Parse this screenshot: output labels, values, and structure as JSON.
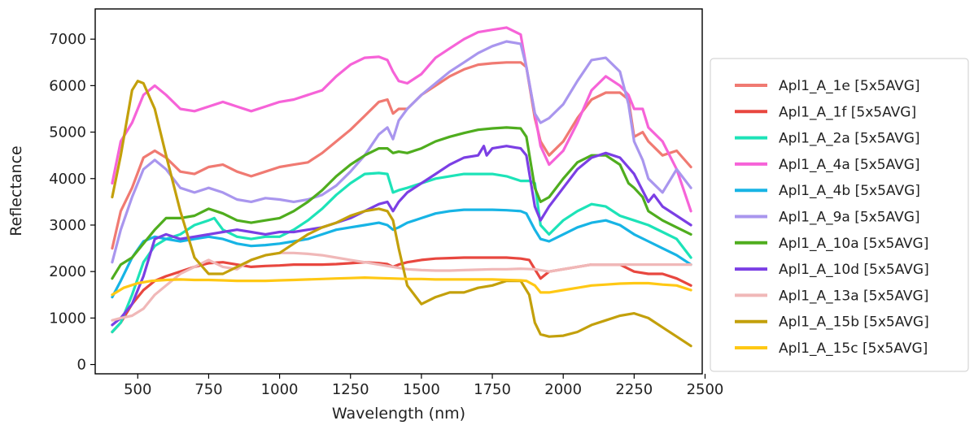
{
  "chart_data": {
    "type": "line",
    "title": "",
    "xlabel": "Wavelength (nm)",
    "ylabel": "Reflectance",
    "xlim": [
      350,
      2490
    ],
    "ylim": [
      -200,
      7650
    ],
    "xticks": [
      500,
      750,
      1000,
      1250,
      1500,
      1750,
      2000,
      2250,
      2500
    ],
    "yticks": [
      0,
      1000,
      2000,
      3000,
      4000,
      5000,
      6000,
      7000
    ],
    "grid": false,
    "legend_position": "outside-right",
    "series": [
      {
        "name": "Apl1_A_1e [5x5AVG]",
        "color": "#F07A72",
        "x": [
          410,
          440,
          480,
          520,
          560,
          600,
          650,
          700,
          750,
          800,
          850,
          900,
          950,
          1000,
          1050,
          1100,
          1150,
          1200,
          1250,
          1300,
          1350,
          1380,
          1400,
          1420,
          1450,
          1500,
          1550,
          1600,
          1650,
          1700,
          1750,
          1800,
          1850,
          1870,
          1900,
          1920,
          1950,
          2000,
          2050,
          2100,
          2150,
          2200,
          2230,
          2250,
          2280,
          2300,
          2350,
          2400,
          2450
        ],
        "y": [
          2500,
          3300,
          3800,
          4450,
          4600,
          4450,
          4150,
          4100,
          4250,
          4300,
          4150,
          4050,
          4150,
          4250,
          4300,
          4350,
          4550,
          4800,
          5050,
          5350,
          5650,
          5700,
          5400,
          5500,
          5500,
          5800,
          6000,
          6200,
          6350,
          6450,
          6480,
          6500,
          6500,
          6400,
          5300,
          4800,
          4500,
          4800,
          5300,
          5700,
          5850,
          5850,
          5700,
          4900,
          5000,
          4800,
          4500,
          4600,
          4250
        ]
      },
      {
        "name": "Apl1_A_1f [5x5AVG]",
        "color": "#E8473F",
        "x": [
          410,
          440,
          480,
          520,
          560,
          600,
          650,
          700,
          750,
          800,
          850,
          900,
          950,
          1000,
          1050,
          1100,
          1150,
          1200,
          1250,
          1300,
          1350,
          1380,
          1400,
          1420,
          1450,
          1500,
          1550,
          1600,
          1650,
          1700,
          1750,
          1800,
          1850,
          1880,
          1900,
          1920,
          1950,
          2000,
          2050,
          2100,
          2150,
          2200,
          2250,
          2300,
          2350,
          2400,
          2450
        ],
        "y": [
          700,
          900,
          1300,
          1600,
          1800,
          1900,
          2000,
          2100,
          2180,
          2200,
          2150,
          2100,
          2120,
          2130,
          2150,
          2150,
          2150,
          2160,
          2180,
          2200,
          2180,
          2160,
          2100,
          2150,
          2200,
          2250,
          2280,
          2290,
          2300,
          2300,
          2300,
          2300,
          2280,
          2250,
          2050,
          1850,
          2000,
          2050,
          2100,
          2150,
          2150,
          2150,
          2000,
          1950,
          1950,
          1850,
          1700
        ]
      },
      {
        "name": "Apl1_A_2a [5x5AVG]",
        "color": "#1DE3B8",
        "x": [
          410,
          440,
          480,
          520,
          560,
          600,
          650,
          700,
          750,
          770,
          800,
          850,
          900,
          950,
          1000,
          1050,
          1100,
          1150,
          1200,
          1250,
          1300,
          1350,
          1380,
          1400,
          1420,
          1450,
          1500,
          1550,
          1600,
          1650,
          1700,
          1750,
          1800,
          1850,
          1880,
          1900,
          1920,
          1950,
          2000,
          2050,
          2100,
          2150,
          2200,
          2250,
          2300,
          2350,
          2400,
          2450
        ],
        "y": [
          700,
          900,
          1500,
          2200,
          2550,
          2700,
          2800,
          3000,
          3100,
          3150,
          2900,
          2750,
          2700,
          2750,
          2750,
          2900,
          3100,
          3350,
          3650,
          3900,
          4100,
          4120,
          4100,
          3700,
          3750,
          3800,
          3900,
          4000,
          4050,
          4100,
          4100,
          4100,
          4050,
          3950,
          3950,
          3900,
          3000,
          2800,
          3100,
          3300,
          3450,
          3400,
          3200,
          3100,
          3000,
          2850,
          2700,
          2300
        ]
      },
      {
        "name": "Apl1_A_4a [5x5AVG]",
        "color": "#F663D8",
        "x": [
          410,
          440,
          480,
          520,
          560,
          600,
          650,
          700,
          750,
          800,
          850,
          900,
          950,
          1000,
          1050,
          1100,
          1150,
          1200,
          1250,
          1300,
          1350,
          1380,
          1400,
          1420,
          1450,
          1500,
          1550,
          1600,
          1650,
          1700,
          1750,
          1800,
          1850,
          1870,
          1900,
          1920,
          1950,
          2000,
          2050,
          2100,
          2150,
          2200,
          2230,
          2250,
          2280,
          2300,
          2350,
          2400,
          2450
        ],
        "y": [
          3900,
          4800,
          5200,
          5800,
          6000,
          5800,
          5500,
          5450,
          5550,
          5650,
          5550,
          5450,
          5550,
          5650,
          5700,
          5800,
          5900,
          6200,
          6450,
          6600,
          6620,
          6550,
          6300,
          6100,
          6050,
          6250,
          6600,
          6800,
          7000,
          7150,
          7200,
          7250,
          7100,
          6400,
          5400,
          4700,
          4300,
          4600,
          5200,
          5900,
          6200,
          6000,
          5800,
          5500,
          5500,
          5100,
          4800,
          4200,
          3300
        ]
      },
      {
        "name": "Apl1_A_4b [5x5AVG]",
        "color": "#17B4E5",
        "x": [
          410,
          440,
          480,
          520,
          560,
          600,
          650,
          700,
          750,
          800,
          850,
          900,
          950,
          1000,
          1050,
          1100,
          1150,
          1200,
          1250,
          1300,
          1350,
          1380,
          1400,
          1420,
          1450,
          1500,
          1550,
          1600,
          1650,
          1700,
          1750,
          1800,
          1850,
          1870,
          1900,
          1920,
          1950,
          2000,
          2050,
          2100,
          2150,
          2200,
          2250,
          2300,
          2350,
          2400,
          2450
        ],
        "y": [
          1450,
          1800,
          2300,
          2650,
          2750,
          2700,
          2650,
          2700,
          2750,
          2700,
          2600,
          2550,
          2570,
          2600,
          2650,
          2700,
          2800,
          2900,
          2950,
          3000,
          3050,
          3000,
          2900,
          2950,
          3050,
          3150,
          3250,
          3300,
          3330,
          3330,
          3330,
          3320,
          3300,
          3250,
          2900,
          2700,
          2650,
          2800,
          2950,
          3050,
          3100,
          3000,
          2800,
          2650,
          2500,
          2350,
          2150
        ]
      },
      {
        "name": "Apl1_A_9a [5x5AVG]",
        "color": "#A996EE",
        "x": [
          410,
          440,
          480,
          520,
          560,
          600,
          650,
          700,
          750,
          800,
          850,
          900,
          950,
          1000,
          1050,
          1100,
          1150,
          1200,
          1250,
          1300,
          1350,
          1380,
          1400,
          1420,
          1450,
          1500,
          1550,
          1600,
          1650,
          1700,
          1750,
          1800,
          1850,
          1870,
          1900,
          1920,
          1950,
          2000,
          2050,
          2100,
          2150,
          2200,
          2230,
          2250,
          2280,
          2300,
          2350,
          2400,
          2450
        ],
        "y": [
          2200,
          2900,
          3600,
          4200,
          4400,
          4200,
          3800,
          3700,
          3800,
          3700,
          3550,
          3500,
          3580,
          3550,
          3500,
          3550,
          3650,
          3850,
          4150,
          4500,
          4950,
          5100,
          4850,
          5250,
          5500,
          5800,
          6050,
          6300,
          6500,
          6700,
          6850,
          6950,
          6900,
          6400,
          5400,
          5200,
          5300,
          5600,
          6100,
          6550,
          6600,
          6300,
          5600,
          4800,
          4400,
          4000,
          3700,
          4200,
          3800
        ]
      },
      {
        "name": "Apl1_A_10a [5x5AVG]",
        "color": "#4FAD1E",
        "x": [
          410,
          440,
          480,
          520,
          560,
          600,
          650,
          700,
          750,
          800,
          850,
          900,
          950,
          1000,
          1050,
          1100,
          1150,
          1200,
          1250,
          1300,
          1350,
          1380,
          1400,
          1420,
          1450,
          1500,
          1550,
          1600,
          1650,
          1700,
          1750,
          1800,
          1850,
          1870,
          1900,
          1920,
          1950,
          2000,
          2050,
          2100,
          2150,
          2200,
          2230,
          2250,
          2280,
          2300,
          2350,
          2400,
          2450
        ],
        "y": [
          1850,
          2150,
          2300,
          2600,
          2900,
          3150,
          3150,
          3200,
          3350,
          3250,
          3100,
          3050,
          3100,
          3150,
          3300,
          3500,
          3750,
          4050,
          4300,
          4500,
          4650,
          4650,
          4550,
          4580,
          4550,
          4650,
          4800,
          4900,
          4980,
          5050,
          5080,
          5100,
          5080,
          4900,
          3800,
          3500,
          3600,
          4000,
          4350,
          4500,
          4500,
          4300,
          3900,
          3800,
          3600,
          3300,
          3100,
          2950,
          2800
        ]
      },
      {
        "name": "Apl1_A_10d [5x5AVG]",
        "color": "#7B3FE4",
        "x": [
          410,
          440,
          480,
          520,
          560,
          600,
          650,
          700,
          750,
          800,
          850,
          900,
          950,
          1000,
          1050,
          1100,
          1150,
          1200,
          1250,
          1300,
          1350,
          1380,
          1400,
          1420,
          1450,
          1500,
          1550,
          1600,
          1650,
          1700,
          1720,
          1730,
          1750,
          1800,
          1850,
          1870,
          1900,
          1920,
          1950,
          2000,
          2050,
          2100,
          2150,
          2200,
          2250,
          2300,
          2320,
          2350,
          2400,
          2450
        ],
        "y": [
          850,
          1000,
          1300,
          1900,
          2700,
          2800,
          2700,
          2750,
          2800,
          2850,
          2900,
          2850,
          2800,
          2850,
          2850,
          2900,
          2950,
          3050,
          3150,
          3300,
          3450,
          3500,
          3300,
          3500,
          3700,
          3900,
          4100,
          4300,
          4450,
          4500,
          4700,
          4500,
          4650,
          4700,
          4650,
          4500,
          3400,
          3100,
          3400,
          3800,
          4200,
          4450,
          4550,
          4450,
          4100,
          3500,
          3650,
          3400,
          3200,
          3000
        ]
      },
      {
        "name": "Apl1_A_13a [5x5AVG]",
        "color": "#F0B8B8",
        "x": [
          410,
          440,
          480,
          520,
          560,
          600,
          650,
          700,
          750,
          800,
          850,
          900,
          950,
          1000,
          1050,
          1100,
          1150,
          1200,
          1250,
          1300,
          1350,
          1400,
          1450,
          1500,
          1550,
          1600,
          1650,
          1700,
          1750,
          1800,
          1850,
          1900,
          1950,
          2000,
          2050,
          2100,
          2150,
          2200,
          2250,
          2300,
          2350,
          2400,
          2450
        ],
        "y": [
          950,
          1000,
          1050,
          1200,
          1500,
          1700,
          1950,
          2100,
          2250,
          2100,
          2050,
          2250,
          2350,
          2400,
          2400,
          2380,
          2350,
          2300,
          2250,
          2200,
          2150,
          2100,
          2050,
          2030,
          2020,
          2020,
          2030,
          2040,
          2050,
          2050,
          2060,
          2050,
          2000,
          2050,
          2100,
          2150,
          2150,
          2150,
          2150,
          2150,
          2150,
          2150,
          2150
        ]
      },
      {
        "name": "Apl1_A_15b [5x5AVG]",
        "color": "#C3A00B",
        "x": [
          410,
          440,
          480,
          500,
          520,
          560,
          600,
          650,
          700,
          750,
          800,
          850,
          900,
          950,
          1000,
          1050,
          1100,
          1150,
          1200,
          1250,
          1300,
          1350,
          1380,
          1400,
          1420,
          1450,
          1500,
          1550,
          1600,
          1650,
          1700,
          1750,
          1800,
          1850,
          1880,
          1900,
          1920,
          1950,
          2000,
          2050,
          2100,
          2150,
          2200,
          2250,
          2300,
          2350,
          2400,
          2450
        ],
        "y": [
          3600,
          4500,
          5900,
          6100,
          6050,
          5500,
          4500,
          3300,
          2300,
          1950,
          1950,
          2100,
          2250,
          2350,
          2400,
          2600,
          2800,
          2950,
          3050,
          3200,
          3300,
          3350,
          3300,
          3100,
          2500,
          1700,
          1300,
          1450,
          1550,
          1550,
          1650,
          1700,
          1800,
          1800,
          1500,
          900,
          650,
          600,
          620,
          700,
          850,
          950,
          1050,
          1100,
          1000,
          800,
          600,
          400
        ]
      },
      {
        "name": "Apl1_A_15c [5x5AVG]",
        "color": "#FFC814",
        "x": [
          410,
          450,
          500,
          550,
          600,
          650,
          700,
          750,
          800,
          850,
          900,
          950,
          1000,
          1050,
          1100,
          1150,
          1200,
          1250,
          1300,
          1350,
          1400,
          1450,
          1500,
          1550,
          1600,
          1650,
          1700,
          1750,
          1800,
          1850,
          1870,
          1900,
          1920,
          1950,
          2000,
          2050,
          2100,
          2150,
          2200,
          2250,
          2300,
          2350,
          2400,
          2450
        ],
        "y": [
          1500,
          1650,
          1750,
          1800,
          1820,
          1830,
          1820,
          1820,
          1810,
          1800,
          1800,
          1800,
          1810,
          1820,
          1830,
          1840,
          1850,
          1860,
          1870,
          1860,
          1850,
          1840,
          1840,
          1830,
          1830,
          1830,
          1830,
          1830,
          1820,
          1810,
          1800,
          1700,
          1550,
          1550,
          1600,
          1650,
          1700,
          1720,
          1740,
          1750,
          1750,
          1720,
          1700,
          1600
        ]
      }
    ]
  }
}
